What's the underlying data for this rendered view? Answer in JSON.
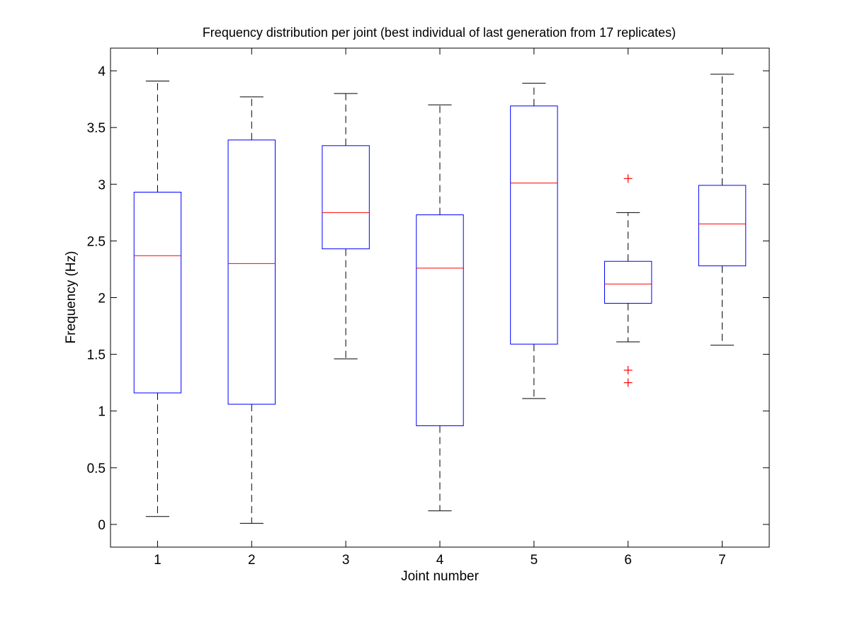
{
  "chart_data": {
    "type": "boxplot",
    "title": "Frequency distribution per joint (best individual of last generation from 17 replicates)",
    "xlabel": "Joint number",
    "ylabel": "Frequency (Hz)",
    "xlim": [
      0.5,
      7.5
    ],
    "ylim": [
      -0.2,
      4.2
    ],
    "x_ticks": [
      1,
      2,
      3,
      4,
      5,
      6,
      7
    ],
    "x_tick_labels": [
      "1",
      "2",
      "3",
      "4",
      "5",
      "6",
      "7"
    ],
    "y_ticks": [
      0,
      0.5,
      1,
      1.5,
      2,
      2.5,
      3,
      3.5,
      4
    ],
    "y_tick_labels": [
      "0",
      "0.5",
      "1",
      "1.5",
      "2",
      "2.5",
      "3",
      "3.5",
      "4"
    ],
    "grid": false,
    "box_color": "#0000ff",
    "median_color": "#ff0000",
    "whisker_color": "#000000",
    "outlier_color": "#ff0000",
    "boxes": [
      {
        "joint": "1",
        "whisker_low": 0.07,
        "q1": 1.16,
        "median": 2.37,
        "q3": 2.93,
        "whisker_high": 3.91,
        "outliers": []
      },
      {
        "joint": "2",
        "whisker_low": 0.01,
        "q1": 1.06,
        "median": 2.3,
        "q3": 3.39,
        "whisker_high": 3.77,
        "outliers": []
      },
      {
        "joint": "3",
        "whisker_low": 1.46,
        "q1": 2.43,
        "median": 2.75,
        "q3": 3.34,
        "whisker_high": 3.8,
        "outliers": []
      },
      {
        "joint": "4",
        "whisker_low": 0.12,
        "q1": 0.87,
        "median": 2.26,
        "q3": 2.73,
        "whisker_high": 3.7,
        "outliers": []
      },
      {
        "joint": "5",
        "whisker_low": 1.11,
        "q1": 1.59,
        "median": 3.01,
        "q3": 3.69,
        "whisker_high": 3.89,
        "outliers": []
      },
      {
        "joint": "6",
        "whisker_low": 1.61,
        "q1": 1.95,
        "median": 2.12,
        "q3": 2.32,
        "whisker_high": 2.75,
        "outliers": [
          3.05,
          1.36,
          1.25
        ]
      },
      {
        "joint": "7",
        "whisker_low": 1.58,
        "q1": 2.28,
        "median": 2.65,
        "q3": 2.99,
        "whisker_high": 3.97,
        "outliers": []
      }
    ]
  }
}
